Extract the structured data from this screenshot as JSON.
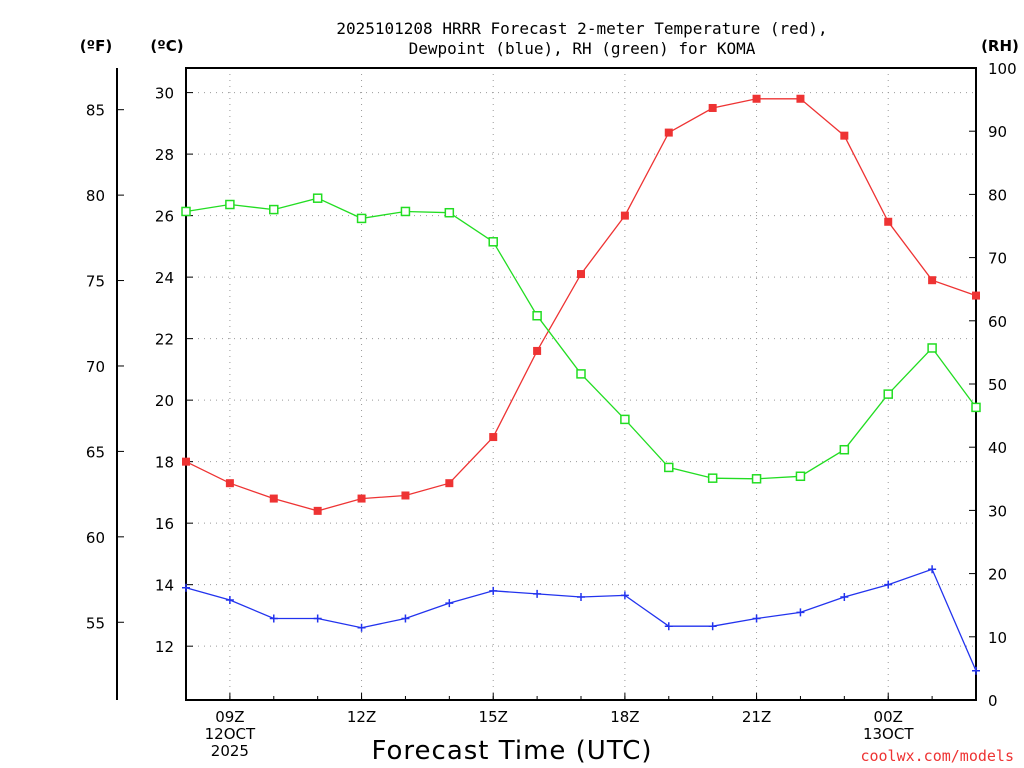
{
  "chart_data": {
    "type": "line",
    "title_line1": "2025101208 HRRR Forecast 2-meter Temperature (red),",
    "title_line2": "Dewpoint (blue), RH (green) for KOMA",
    "xlabel": "Forecast Time (UTC)",
    "credit": "coolwx.com/models",
    "unit_f": "(ºF)",
    "unit_c": "(ºC)",
    "unit_rh": "(RH)",
    "x_hours": [
      8,
      9,
      10,
      11,
      12,
      13,
      14,
      15,
      16,
      17,
      18,
      19,
      20,
      21,
      22,
      23,
      24,
      25,
      26
    ],
    "x_ticks": [
      {
        "hour": 9,
        "line1": "09Z",
        "line2": "12OCT",
        "line3": "2025"
      },
      {
        "hour": 12,
        "line1": "12Z",
        "line2": "",
        "line3": ""
      },
      {
        "hour": 15,
        "line1": "15Z",
        "line2": "",
        "line3": ""
      },
      {
        "hour": 18,
        "line1": "18Z",
        "line2": "",
        "line3": ""
      },
      {
        "hour": 21,
        "line1": "21Z",
        "line2": "",
        "line3": ""
      },
      {
        "hour": 24,
        "line1": "00Z",
        "line2": "13OCT",
        "line3": ""
      }
    ],
    "c_ticks": [
      "12",
      "14",
      "16",
      "18",
      "20",
      "22",
      "24",
      "26",
      "28",
      "30"
    ],
    "f_ticks": [
      "55",
      "60",
      "65",
      "70",
      "75",
      "80",
      "85"
    ],
    "rh_ticks": [
      "0",
      "10",
      "20",
      "30",
      "40",
      "50",
      "60",
      "70",
      "80",
      "90",
      "100"
    ],
    "ylim_c": [
      10.25,
      30.8
    ],
    "ylim_rh": [
      0,
      100
    ],
    "series": [
      {
        "name": "Temperature",
        "unit": "C",
        "color": "#ee3333",
        "marker": "filled-square",
        "values": [
          18.0,
          17.3,
          16.8,
          16.4,
          16.8,
          16.9,
          17.3,
          18.8,
          21.6,
          24.1,
          26.0,
          28.7,
          29.5,
          29.8,
          29.8,
          28.6,
          25.8,
          23.9,
          23.4
        ]
      },
      {
        "name": "Dewpoint",
        "unit": "C",
        "color": "#2233ee",
        "marker": "plus",
        "values": [
          13.9,
          13.5,
          12.9,
          12.9,
          12.6,
          12.9,
          13.4,
          13.8,
          13.7,
          13.6,
          13.65,
          12.65,
          12.65,
          12.9,
          13.1,
          13.6,
          14.0,
          14.5,
          11.2
        ]
      },
      {
        "name": "RH",
        "unit": "%",
        "color": "#22dd22",
        "marker": "open-square",
        "values": [
          77.3,
          78.4,
          77.6,
          79.4,
          76.2,
          77.3,
          77.1,
          72.5,
          60.8,
          51.6,
          44.4,
          36.8,
          35.1,
          35.0,
          35.4,
          39.6,
          48.4,
          55.7,
          46.3
        ]
      }
    ]
  }
}
